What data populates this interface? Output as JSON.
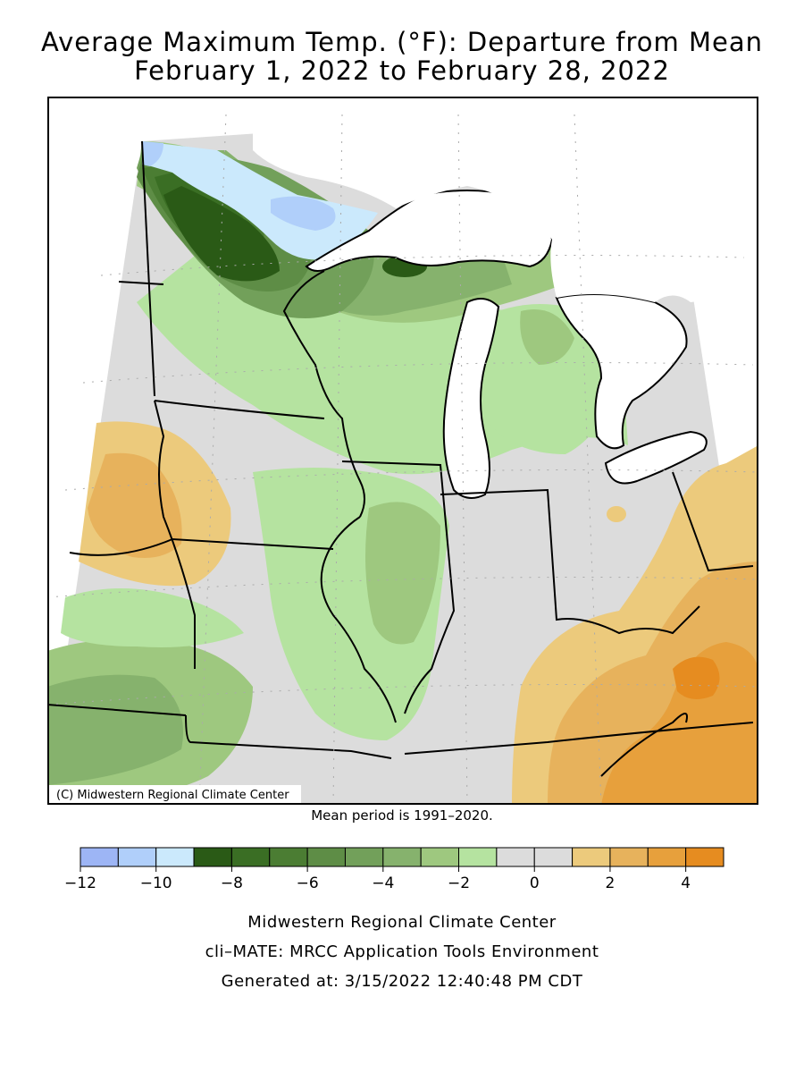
{
  "title_line1": "Average Maximum Temp. (°F): Departure from Mean",
  "title_line2": "February 1, 2022 to February 28, 2022",
  "map": {
    "copyright": "(C) Midwestern Regional Climate Center"
  },
  "mean_period_note": "Mean period is 1991–2020.",
  "legend": {
    "colors": [
      "#9db5f5",
      "#b0cffa",
      "#cbe9fc",
      "#2a5a16",
      "#3a6e24",
      "#4b7d33",
      "#5e8d46",
      "#72a05a",
      "#86b26d",
      "#9ec87f",
      "#b5e3a0",
      "#dcdcdc",
      "#dcdcdc",
      "#ecca7c",
      "#e7b25c",
      "#e7a03c",
      "#e68c20"
    ],
    "tick_labels": [
      "−12",
      "−10",
      "−8",
      "−6",
      "−4",
      "−2",
      "0",
      "2",
      "4"
    ]
  },
  "footer": {
    "line1": "Midwestern Regional Climate Center",
    "line2": "cli–MATE: MRCC Application Tools Environment",
    "line3": "Generated at: 3/15/2022 12:40:48 PM CDT"
  }
}
